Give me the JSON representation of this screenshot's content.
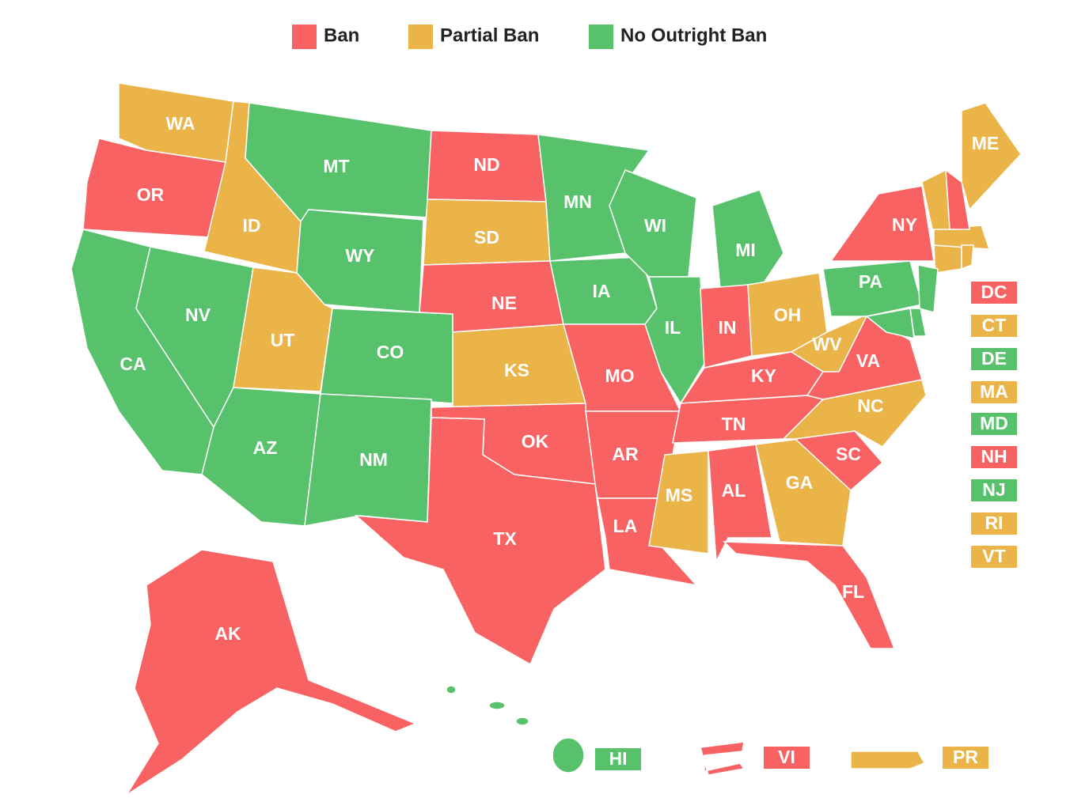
{
  "legend": [
    {
      "label": "Ban",
      "color": "#f96262"
    },
    {
      "label": "Partial Ban",
      "color": "#eab449"
    },
    {
      "label": "No Outright Ban",
      "color": "#57c26b"
    }
  ],
  "states": [
    {
      "label": "WA",
      "color": "#eab449"
    },
    {
      "label": "OR",
      "color": "#f96262"
    },
    {
      "label": "CA",
      "color": "#57c26b"
    },
    {
      "label": "NV",
      "color": "#57c26b"
    },
    {
      "label": "ID",
      "color": "#eab449"
    },
    {
      "label": "MT",
      "color": "#57c26b"
    },
    {
      "label": "WY",
      "color": "#57c26b"
    },
    {
      "label": "UT",
      "color": "#eab449"
    },
    {
      "label": "CO",
      "color": "#57c26b"
    },
    {
      "label": "AZ",
      "color": "#57c26b"
    },
    {
      "label": "NM",
      "color": "#57c26b"
    },
    {
      "label": "ND",
      "color": "#f96262"
    },
    {
      "label": "SD",
      "color": "#eab449"
    },
    {
      "label": "NE",
      "color": "#f96262"
    },
    {
      "label": "KS",
      "color": "#eab449"
    },
    {
      "label": "OK",
      "color": "#f96262"
    },
    {
      "label": "TX",
      "color": "#f96262"
    },
    {
      "label": "MN",
      "color": "#57c26b"
    },
    {
      "label": "IA",
      "color": "#57c26b"
    },
    {
      "label": "MO",
      "color": "#f96262"
    },
    {
      "label": "AR",
      "color": "#f96262"
    },
    {
      "label": "LA",
      "color": "#f96262"
    },
    {
      "label": "WI",
      "color": "#57c26b"
    },
    {
      "label": "IL",
      "color": "#57c26b"
    },
    {
      "label": "MI",
      "color": "#57c26b"
    },
    {
      "label": "IN",
      "color": "#f96262"
    },
    {
      "label": "OH",
      "color": "#eab449"
    },
    {
      "label": "KY",
      "color": "#f96262"
    },
    {
      "label": "TN",
      "color": "#f96262"
    },
    {
      "label": "MS",
      "color": "#eab449"
    },
    {
      "label": "AL",
      "color": "#f96262"
    },
    {
      "label": "GA",
      "color": "#eab449"
    },
    {
      "label": "FL",
      "color": "#f96262"
    },
    {
      "label": "SC",
      "color": "#f96262"
    },
    {
      "label": "NC",
      "color": "#eab449"
    },
    {
      "label": "VA",
      "color": "#f96262"
    },
    {
      "label": "WV",
      "color": "#eab449"
    },
    {
      "label": "PA",
      "color": "#57c26b"
    },
    {
      "label": "NY",
      "color": "#f96262"
    },
    {
      "label": "ME",
      "color": "#eab449"
    },
    {
      "label": "DC",
      "color": "#f96262"
    },
    {
      "label": "CT",
      "color": "#eab449"
    },
    {
      "label": "DE",
      "color": "#57c26b"
    },
    {
      "label": "MA",
      "color": "#eab449"
    },
    {
      "label": "MD",
      "color": "#57c26b"
    },
    {
      "label": "NH",
      "color": "#f96262"
    },
    {
      "label": "NJ",
      "color": "#57c26b"
    },
    {
      "label": "RI",
      "color": "#eab449"
    },
    {
      "label": "VT",
      "color": "#eab449"
    },
    {
      "label": "AK",
      "color": "#f96262"
    },
    {
      "label": "HI",
      "color": "#57c26b"
    },
    {
      "label": "VI",
      "color": "#f96262"
    },
    {
      "label": "PR",
      "color": "#eab449"
    }
  ]
}
